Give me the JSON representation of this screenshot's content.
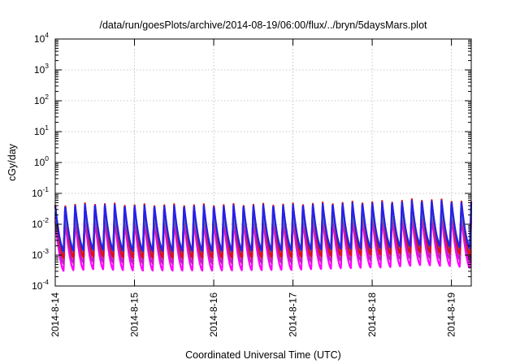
{
  "chart_data": {
    "type": "line",
    "title": "/data/run/goesPlots/archive/2014-08-19/06:00/flux/../bryn/5daysMars.plot",
    "xlabel": "Coordinated Universal Time (UTC)",
    "ylabel": "cGy/day",
    "yscale": "log",
    "ylim": [
      0.0001,
      10000
    ],
    "xlim_days": [
      "2014-08-14 00:00",
      "2014-08-19 06:00"
    ],
    "grid": true,
    "legend": "none",
    "y_ticks": [
      {
        "base": "10",
        "exp": "-4",
        "value": 0.0001
      },
      {
        "base": "10",
        "exp": "-3",
        "value": 0.001
      },
      {
        "base": "10",
        "exp": "-2",
        "value": 0.01
      },
      {
        "base": "10",
        "exp": "-1",
        "value": 0.1
      },
      {
        "base": "10",
        "exp": "0",
        "value": 1
      },
      {
        "base": "10",
        "exp": "1",
        "value": 10
      },
      {
        "base": "10",
        "exp": "2",
        "value": 100
      },
      {
        "base": "10",
        "exp": "3",
        "value": 1000
      },
      {
        "base": "10",
        "exp": "4",
        "value": 10000
      }
    ],
    "x_ticks": [
      "2014-8-14",
      "2014-8-15",
      "2014-8-16",
      "2014-8-17",
      "2014-8-18",
      "2014-8-19"
    ],
    "oscillation": {
      "period_hours": 3,
      "peak_hour_offset": 2.3
    },
    "series": [
      {
        "color": "#2222ee",
        "peak": 0.045,
        "trough": 0.0015
      },
      {
        "color": "#dd1111",
        "peak": 0.05,
        "trough": 0.0009
      },
      {
        "color": "#22bbbb",
        "peak": 0.03,
        "trough": 0.0012
      },
      {
        "color": "#2288cc",
        "peak": 0.025,
        "trough": 0.0018
      },
      {
        "color": "#bb22bb",
        "peak": 0.02,
        "trough": 0.0006
      },
      {
        "color": "#ff00ff",
        "peak": 0.015,
        "trough": 0.00035
      }
    ],
    "envelope": [
      {
        "day": 0.0,
        "factor": 0.85
      },
      {
        "day": 0.5,
        "factor": 1.0
      },
      {
        "day": 1.0,
        "factor": 0.9
      },
      {
        "day": 2.0,
        "factor": 0.9
      },
      {
        "day": 3.0,
        "factor": 0.95
      },
      {
        "day": 3.8,
        "factor": 1.1
      },
      {
        "day": 4.2,
        "factor": 1.15
      },
      {
        "day": 4.6,
        "factor": 1.35
      },
      {
        "day": 5.0,
        "factor": 1.25
      },
      {
        "day": 5.25,
        "factor": 1.1
      }
    ]
  }
}
